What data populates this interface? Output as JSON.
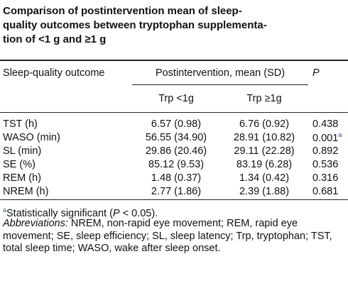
{
  "title_lines": [
    "Comparison of postintervention mean of sleep-",
    "quality outcomes between tryptophan supplementa-",
    "tion of <1 g and ≥1 g"
  ],
  "table": {
    "header": [
      "Sleep-quality outcome",
      "Postintervention, mean (SD)",
      "P"
    ],
    "subheader": [
      "Trp <1g",
      "Trp ≥1g"
    ],
    "rows": [
      [
        "TST (h)",
        "6.57 (0.98)",
        "6.76 (0.92)",
        "0.438"
      ],
      [
        "WASO (min)",
        "56.55 (34.90)",
        "28.91 (10.82)",
        "0.001"
      ],
      [
        "SL (min)",
        "29.86 (20.46)",
        "29.11 (22.28)",
        "0.892"
      ],
      [
        "SE (%)",
        "85.12 (9.53)",
        "83.19 (6.28)",
        "0.536"
      ],
      [
        "REM (h)",
        "1.48 (0.37)",
        "1.34 (0.42)",
        "0.316"
      ],
      [
        "NREM (h)",
        "2.77 (1.86)",
        "2.39 (1.88)",
        "0.681"
      ]
    ],
    "row_marks": {
      "1": "a"
    }
  },
  "footnote": {
    "mark": "a",
    "parts": [
      "Statistically significant (",
      "P",
      " < 0.05)."
    ]
  },
  "abbreviations": {
    "label": "Abbreviations:",
    "text": " NREM, non-rapid eye movement; REM, rapid eye movement; SE, sleep efficiency; SL, sleep latency; Trp, tryptophan; TST, total sleep time; WASO, wake after sleep onset."
  }
}
